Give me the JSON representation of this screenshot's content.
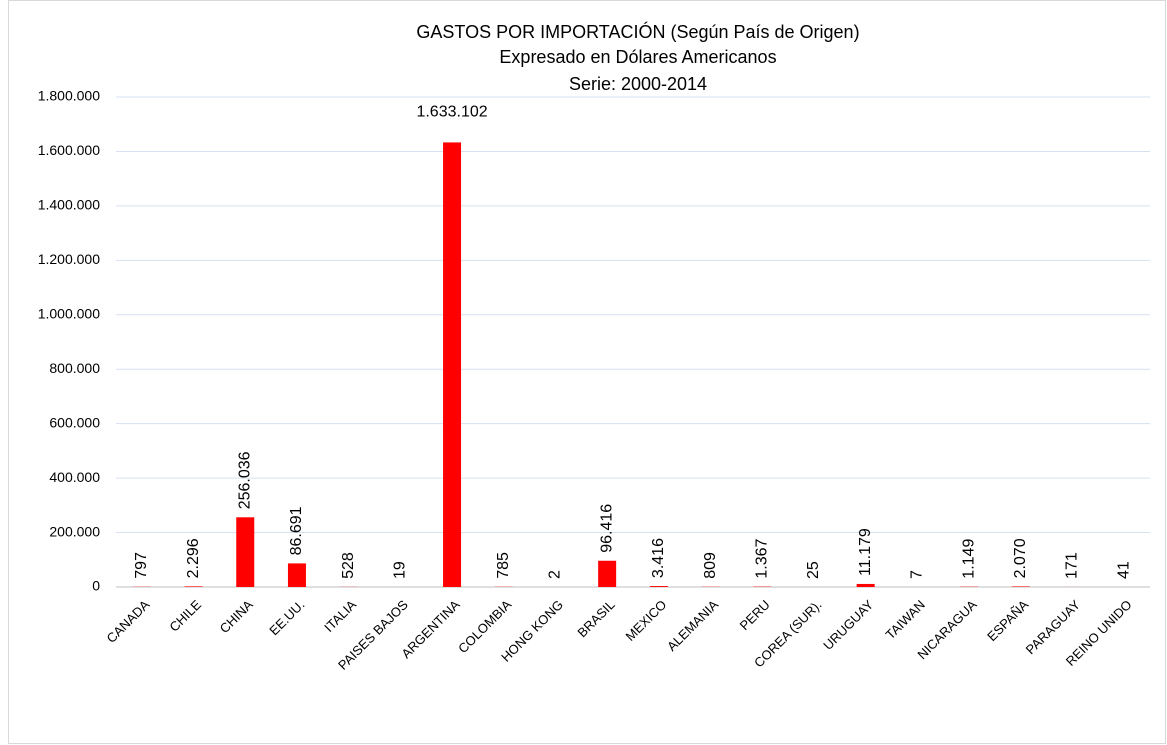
{
  "chart_data": {
    "type": "bar",
    "title": [
      "GASTOS POR IMPORTACIÓN (Según País de Origen)",
      "Expresado en Dólares Americanos",
      "Serie: 2000-2014"
    ],
    "categories": [
      "CANADA",
      "CHILE",
      "CHINA",
      "EE.UU.",
      "ITALIA",
      "PAISES BAJOS",
      "ARGENTINA",
      "COLOMBIA",
      "HONG KONG",
      "BRASIL",
      "MEXICO",
      "ALEMANIA",
      "PERU",
      "COREA (SUR).",
      "URUGUAY",
      "TAIWAN",
      "NICARAGUA",
      "ESPAÑA",
      "PARAGUAY",
      "REINO UNIDO"
    ],
    "values": [
      797,
      2296,
      256036,
      86691,
      528,
      19,
      1633102,
      785,
      2,
      96416,
      3416,
      809,
      1367,
      25,
      11179,
      7,
      1149,
      2070,
      171,
      41
    ],
    "value_labels": [
      "797",
      "2.296",
      "256.036",
      "86.691",
      "528",
      "19",
      "1.633.102",
      "785",
      "2",
      "96.416",
      "3.416",
      "809",
      "1.367",
      "25",
      "11.179",
      "7",
      "1.149",
      "2.070",
      "171",
      "41"
    ],
    "color": "#ff0000",
    "ylim": [
      0,
      1800000
    ],
    "yticks": [
      0,
      {
        "value": 200000,
        "label": "200.000"
      },
      {
        "value": 400000,
        "label": "400.000"
      },
      {
        "value": 600000,
        "label": "600.000"
      },
      {
        "value": 800000,
        "label": "800.000"
      },
      {
        "value": 1000000,
        "label": "1.000.000"
      },
      {
        "value": 1200000,
        "label": "1.200.000"
      },
      {
        "value": 1400000,
        "label": "1.400.000"
      },
      {
        "value": 1600000,
        "label": "1.600.000"
      },
      {
        "value": 1800000,
        "label": "1.800.000"
      }
    ],
    "grid": true
  }
}
